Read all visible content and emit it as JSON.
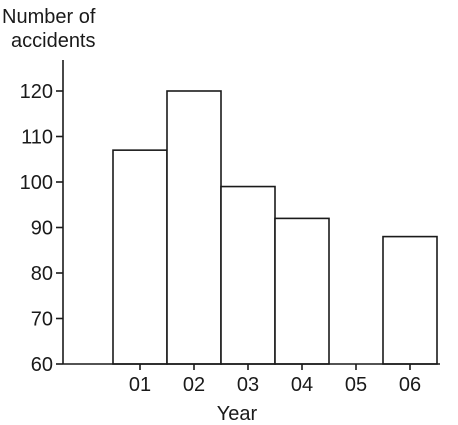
{
  "chart_data": {
    "type": "bar",
    "title": "",
    "xlabel": "Year",
    "ylabel_lines": [
      "Number of",
      "accidents"
    ],
    "categories": [
      "01",
      "02",
      "03",
      "04",
      "05",
      "06"
    ],
    "values": [
      107,
      120,
      99,
      92,
      null,
      88
    ],
    "yticks": [
      60,
      70,
      80,
      90,
      100,
      110,
      120
    ],
    "ylim": [
      60,
      120
    ],
    "grid": false,
    "legend": "none",
    "bar_fill": "#ffffff",
    "bar_stroke": "#1a1a1a"
  }
}
